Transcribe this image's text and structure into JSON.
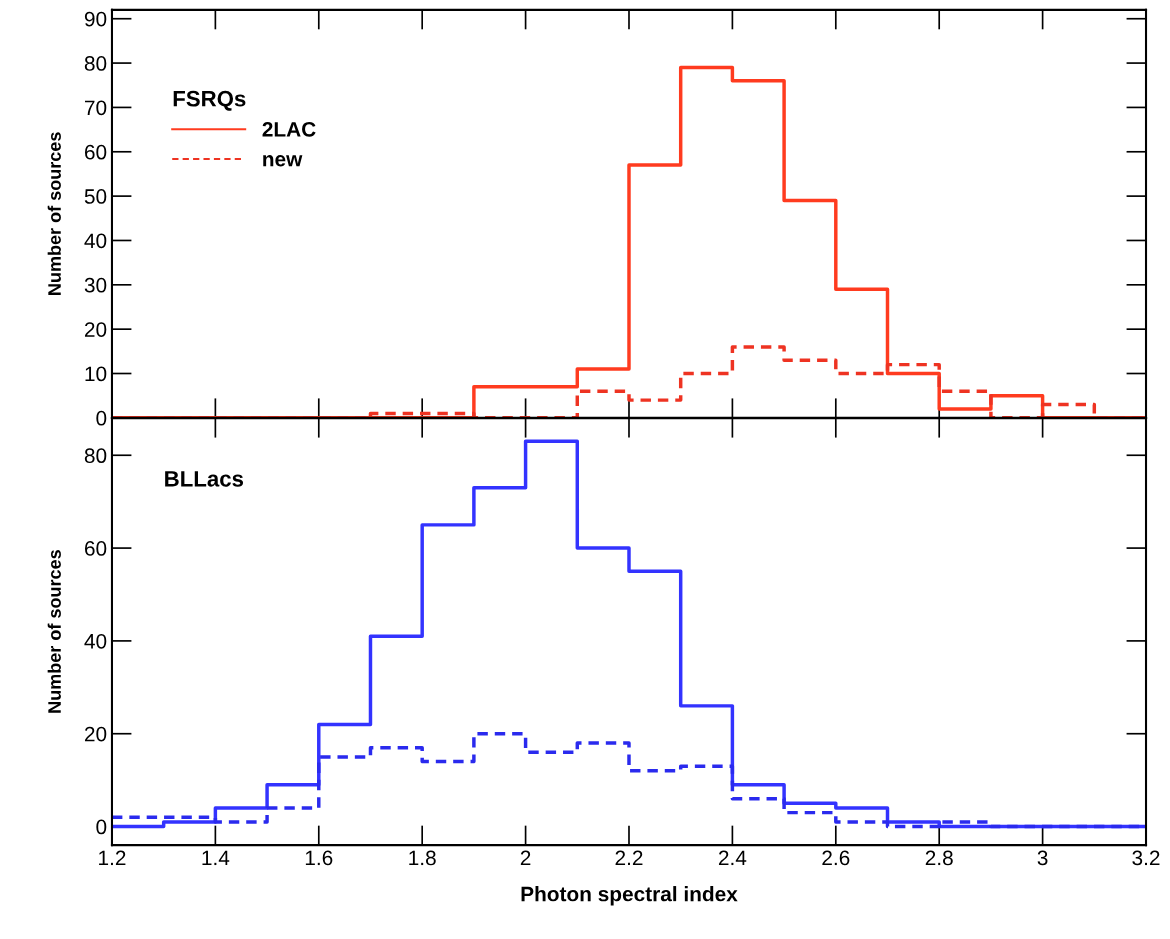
{
  "chart_data": [
    {
      "type": "histogram",
      "legend_title": "FSRQs",
      "ylabel": "Number of sources",
      "bins": [
        1.2,
        1.3,
        1.4,
        1.5,
        1.6,
        1.7,
        1.8,
        1.9,
        2.0,
        2.1,
        2.2,
        2.3,
        2.4,
        2.5,
        2.6,
        2.7,
        2.8,
        2.9,
        3.0,
        3.1,
        3.2
      ],
      "series": [
        {
          "name": "2LAC",
          "color": "#ff3b1f",
          "line_style": "solid",
          "values": [
            0,
            0,
            0,
            0,
            0,
            0,
            0,
            7,
            7,
            11,
            57,
            79,
            76,
            49,
            29,
            10,
            2,
            5,
            0,
            0
          ]
        },
        {
          "name": "new",
          "color": "#ee3322",
          "line_style": "dashed",
          "values": [
            0,
            0,
            0,
            0,
            0,
            1,
            1,
            0,
            0,
            6,
            4,
            10,
            16,
            13,
            10,
            12,
            6,
            0,
            3,
            0
          ]
        }
      ],
      "xlim": [
        1.2,
        3.2
      ],
      "xticks": [
        1.2,
        1.4,
        1.6,
        1.8,
        2,
        2.2,
        2.4,
        2.6,
        2.8,
        3,
        3.2
      ],
      "ylim": [
        0,
        92
      ],
      "yticks": [
        0,
        10,
        20,
        30,
        40,
        50,
        60,
        70,
        80,
        90
      ],
      "tick_labels": "y",
      "legend": "top left",
      "grid": false
    },
    {
      "type": "histogram",
      "xlabel": "Photon spectral index",
      "ylabel": "Number of sources",
      "annotations": [
        "BLLacs"
      ],
      "bins": [
        1.2,
        1.3,
        1.4,
        1.5,
        1.6,
        1.7,
        1.8,
        1.9,
        2.0,
        2.1,
        2.2,
        2.3,
        2.4,
        2.5,
        2.6,
        2.7,
        2.8,
        2.9,
        3.0,
        3.1,
        3.2
      ],
      "series": [
        {
          "color": "#3333ff",
          "line_style": "solid",
          "values": [
            0,
            1,
            4,
            9,
            22,
            41,
            65,
            73,
            83,
            60,
            55,
            26,
            9,
            5,
            4,
            1,
            0,
            0,
            0,
            0
          ]
        },
        {
          "color": "#2a2aee",
          "line_style": "dashed",
          "values": [
            2,
            2,
            1,
            4,
            15,
            17,
            14,
            20,
            16,
            18,
            12,
            13,
            6,
            3,
            1,
            0,
            1,
            0,
            0,
            0
          ]
        }
      ],
      "xlim": [
        1.2,
        3.2
      ],
      "xticks": [
        1.2,
        1.4,
        1.6,
        1.8,
        2,
        2.2,
        2.4,
        2.6,
        2.8,
        3,
        3.2
      ],
      "ylim": [
        -4,
        88
      ],
      "yticks": [
        0,
        20,
        40,
        60,
        80
      ],
      "grid": false
    }
  ]
}
